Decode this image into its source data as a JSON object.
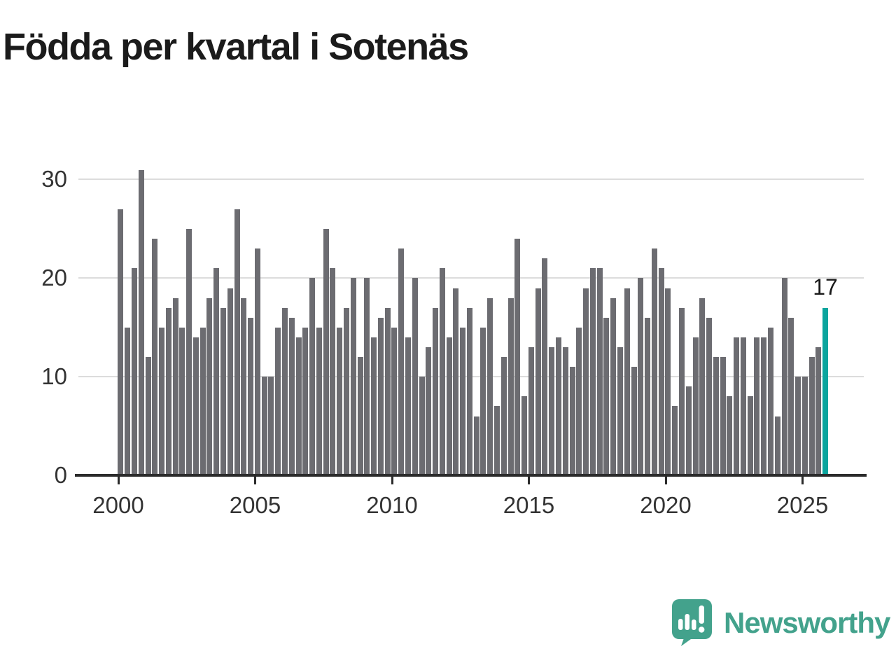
{
  "title": "Födda per kvartal i Sotenäs",
  "chart_data": {
    "type": "bar",
    "title": "Födda per kvartal i Sotenäs",
    "x_start": "2000 Q1",
    "frequency": "quarterly",
    "categories_note": "104 quarterly bars from 2000 Q1 to 2025 Q4",
    "values": [
      27,
      15,
      21,
      31,
      12,
      24,
      15,
      17,
      18,
      15,
      25,
      14,
      15,
      18,
      21,
      17,
      19,
      27,
      18,
      16,
      23,
      10,
      10,
      15,
      17,
      16,
      14,
      15,
      20,
      15,
      25,
      21,
      15,
      17,
      20,
      12,
      20,
      14,
      16,
      17,
      15,
      23,
      14,
      20,
      10,
      13,
      17,
      21,
      14,
      19,
      15,
      17,
      6,
      15,
      18,
      7,
      12,
      18,
      24,
      8,
      13,
      19,
      22,
      13,
      14,
      13,
      11,
      15,
      19,
      21,
      21,
      16,
      18,
      13,
      19,
      11,
      20,
      16,
      23,
      21,
      19,
      7,
      17,
      9,
      14,
      18,
      16,
      12,
      12,
      8,
      14,
      14,
      8,
      14,
      14,
      15,
      6,
      20,
      16,
      10,
      10,
      12,
      13,
      17
    ],
    "highlight_last": true,
    "highlight_value": 17,
    "annotation_label": "17",
    "y_ticks": [
      "0",
      "10",
      "20",
      "30"
    ],
    "x_ticks": [
      "2000",
      "2005",
      "2010",
      "2015",
      "2020",
      "2025"
    ],
    "ylim": [
      0,
      32
    ],
    "grid": "horizontal",
    "legend": "none",
    "colors": {
      "bar": "#6c6c71",
      "highlight": "#0ba59e",
      "gridline": "#dcdcdc",
      "axis": "#2b2b2b",
      "labels": "#333333",
      "title": "#1b1b1b"
    }
  },
  "branding": {
    "name": "Newsworthy",
    "color": "#43a28c",
    "icon": "speech-bubble-bar-chart-icon"
  }
}
